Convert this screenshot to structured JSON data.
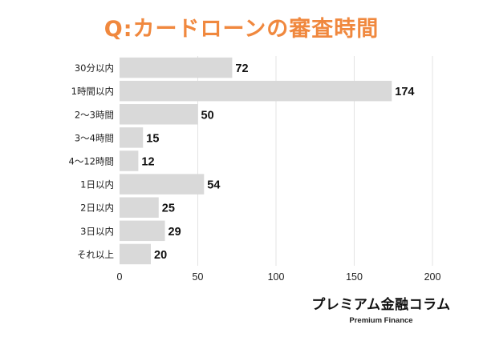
{
  "title": "Q:カードローンの審査時間",
  "colors": {
    "title": "#F0883E",
    "bar": "#D9D9D9",
    "grid": "#E3E3E3",
    "label": "#222222",
    "value": "#111111"
  },
  "chart_data": {
    "type": "bar",
    "orientation": "horizontal",
    "categories": [
      "30分以内",
      "1時間以内",
      "2〜3時間",
      "3〜4時間",
      "4〜12時間",
      "1日以内",
      "2日以内",
      "3日以内",
      "それ以上"
    ],
    "values": [
      72,
      174,
      50,
      15,
      12,
      54,
      25,
      29,
      20
    ],
    "xlim": [
      0,
      200
    ],
    "xticks": [
      "0",
      "50",
      "100",
      "150",
      "200"
    ],
    "grid": true,
    "value_labels": true
  },
  "brand": {
    "name": "プレミアム金融コラム",
    "sub": "Premium Finance"
  }
}
